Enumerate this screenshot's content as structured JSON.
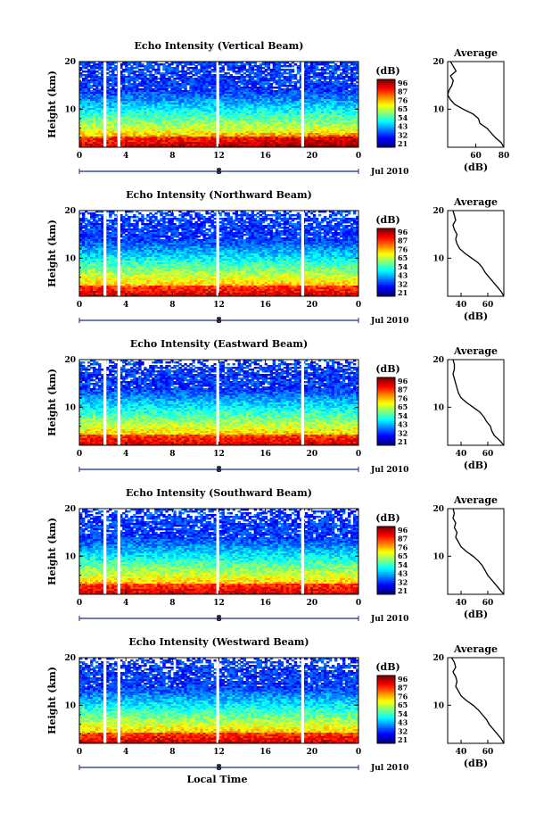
{
  "chart_data": [
    {
      "type": "heatmap",
      "title": "Echo Intensity (Vertical Beam)",
      "ylabel": "Height (km)",
      "ylim": [
        2,
        20
      ],
      "yticks": [
        "20",
        "10"
      ],
      "xlim": [
        0,
        24
      ],
      "xticks": [
        "0",
        "4",
        "8",
        "12",
        "16",
        "20",
        "0"
      ],
      "date_tick": "8",
      "date_label": "Jul 2010",
      "data_gaps_hours": [
        2.2,
        3.4,
        11.9,
        19.2
      ],
      "colorbar": {
        "label": "(dB)",
        "ticks": [
          "96",
          "87",
          "76",
          "65",
          "54",
          "43",
          "32",
          "21"
        ],
        "range": [
          21,
          96
        ]
      },
      "profile": {
        "title": "Average",
        "xlabel": "(dB)",
        "xticks": [
          "60",
          "80"
        ],
        "xlim": [
          40,
          80
        ],
        "yticks": [
          "20",
          "10"
        ],
        "ylim": [
          2,
          20
        ],
        "points": [
          [
            20,
            42
          ],
          [
            19,
            44
          ],
          [
            18,
            46
          ],
          [
            17,
            42
          ],
          [
            16,
            44
          ],
          [
            15,
            43
          ],
          [
            14,
            41
          ],
          [
            13,
            40
          ],
          [
            12,
            42
          ],
          [
            11,
            45
          ],
          [
            10,
            51
          ],
          [
            9,
            58
          ],
          [
            8,
            62
          ],
          [
            7,
            63
          ],
          [
            6,
            68
          ],
          [
            5,
            71
          ],
          [
            4,
            74
          ],
          [
            3,
            78
          ],
          [
            2,
            80
          ]
        ]
      }
    },
    {
      "type": "heatmap",
      "title": "Echo Intensity (Northward Beam)",
      "ylabel": "Height (km)",
      "ylim": [
        2,
        20
      ],
      "yticks": [
        "20",
        "10"
      ],
      "xlim": [
        0,
        24
      ],
      "xticks": [
        "0",
        "4",
        "8",
        "12",
        "16",
        "20",
        "0"
      ],
      "date_tick": "8",
      "date_label": "Jul 2010",
      "data_gaps_hours": [
        2.2,
        3.4,
        11.9,
        19.2
      ],
      "colorbar": {
        "label": "(dB)",
        "ticks": [
          "96",
          "87",
          "76",
          "65",
          "54",
          "43",
          "32",
          "21"
        ],
        "range": [
          21,
          96
        ]
      },
      "profile": {
        "title": "Average",
        "xlabel": "(dB)",
        "xticks": [
          "40",
          "60"
        ],
        "xlim": [
          30,
          72
        ],
        "yticks": [
          "20",
          "10"
        ],
        "ylim": [
          2,
          20
        ],
        "points": [
          [
            20,
            34
          ],
          [
            19,
            35
          ],
          [
            18,
            36
          ],
          [
            17,
            34
          ],
          [
            16,
            35
          ],
          [
            15,
            37
          ],
          [
            14,
            36
          ],
          [
            13,
            37
          ],
          [
            12,
            39
          ],
          [
            11,
            43
          ],
          [
            10,
            48
          ],
          [
            9,
            53
          ],
          [
            8,
            56
          ],
          [
            7,
            58
          ],
          [
            6,
            61
          ],
          [
            5,
            64
          ],
          [
            4,
            67
          ],
          [
            3,
            70
          ],
          [
            2,
            72
          ]
        ]
      }
    },
    {
      "type": "heatmap",
      "title": "Echo Intensity (Eastward Beam)",
      "ylabel": "Height (km)",
      "ylim": [
        2,
        20
      ],
      "yticks": [
        "20",
        "10"
      ],
      "xlim": [
        0,
        24
      ],
      "xticks": [
        "0",
        "4",
        "8",
        "12",
        "16",
        "20",
        "0"
      ],
      "date_tick": "8",
      "date_label": "Jul 2010",
      "data_gaps_hours": [
        2.2,
        3.4,
        11.9,
        19.2
      ],
      "colorbar": {
        "label": "(dB)",
        "ticks": [
          "96",
          "87",
          "76",
          "65",
          "54",
          "43",
          "32",
          "21"
        ],
        "range": [
          21,
          96
        ]
      },
      "profile": {
        "title": "Average",
        "xlabel": "(dB)",
        "xticks": [
          "40",
          "60"
        ],
        "xlim": [
          30,
          72
        ],
        "yticks": [
          "20",
          "10"
        ],
        "ylim": [
          2,
          20
        ],
        "points": [
          [
            20,
            34
          ],
          [
            19,
            35
          ],
          [
            18,
            35
          ],
          [
            17,
            34
          ],
          [
            16,
            35
          ],
          [
            15,
            36
          ],
          [
            14,
            37
          ],
          [
            13,
            38
          ],
          [
            12,
            40
          ],
          [
            11,
            44
          ],
          [
            10,
            49
          ],
          [
            9,
            54
          ],
          [
            8,
            57
          ],
          [
            7,
            59
          ],
          [
            6,
            62
          ],
          [
            5,
            63
          ],
          [
            4,
            65
          ],
          [
            3,
            69
          ],
          [
            2,
            72
          ]
        ]
      }
    },
    {
      "type": "heatmap",
      "title": "Echo Intensity (Southward Beam)",
      "ylabel": "Height (km)",
      "ylim": [
        2,
        20
      ],
      "yticks": [
        "20",
        "10"
      ],
      "xlim": [
        0,
        24
      ],
      "xticks": [
        "0",
        "4",
        "8",
        "12",
        "16",
        "20",
        "0"
      ],
      "date_tick": "8",
      "date_label": "Jul 2010",
      "data_gaps_hours": [
        2.2,
        3.4,
        11.9,
        19.2
      ],
      "colorbar": {
        "label": "(dB)",
        "ticks": [
          "96",
          "87",
          "76",
          "65",
          "54",
          "43",
          "32",
          "21"
        ],
        "range": [
          21,
          96
        ]
      },
      "profile": {
        "title": "Average",
        "xlabel": "(dB)",
        "xticks": [
          "40",
          "60"
        ],
        "xlim": [
          30,
          72
        ],
        "yticks": [
          "20",
          "10"
        ],
        "ylim": [
          2,
          20
        ],
        "points": [
          [
            20,
            34
          ],
          [
            19,
            35
          ],
          [
            18,
            34
          ],
          [
            17,
            36
          ],
          [
            16,
            35
          ],
          [
            15,
            37
          ],
          [
            14,
            36
          ],
          [
            13,
            38
          ],
          [
            12,
            40
          ],
          [
            11,
            44
          ],
          [
            10,
            49
          ],
          [
            9,
            53
          ],
          [
            8,
            56
          ],
          [
            7,
            58
          ],
          [
            6,
            60
          ],
          [
            5,
            63
          ],
          [
            4,
            66
          ],
          [
            3,
            69
          ],
          [
            2,
            72
          ]
        ]
      }
    },
    {
      "type": "heatmap",
      "title": "Echo Intensity (Westward Beam)",
      "ylabel": "Height (km)",
      "ylim": [
        2,
        20
      ],
      "yticks": [
        "20",
        "10"
      ],
      "xlim": [
        0,
        24
      ],
      "xticks": [
        "0",
        "4",
        "8",
        "12",
        "16",
        "20",
        "0"
      ],
      "date_tick": "8",
      "date_label": "Jul 2010",
      "xlabel": "Local Time",
      "data_gaps_hours": [
        2.2,
        3.4,
        11.9,
        19.2
      ],
      "colorbar": {
        "label": "(dB)",
        "ticks": [
          "96",
          "87",
          "76",
          "65",
          "54",
          "43",
          "32",
          "21"
        ],
        "range": [
          21,
          96
        ]
      },
      "profile": {
        "title": "Average",
        "xlabel": "(dB)",
        "xticks": [
          "40",
          "60"
        ],
        "xlim": [
          30,
          72
        ],
        "yticks": [
          "20",
          "10"
        ],
        "ylim": [
          2,
          20
        ],
        "points": [
          [
            20,
            33
          ],
          [
            19,
            35
          ],
          [
            18,
            36
          ],
          [
            17,
            34
          ],
          [
            16,
            36
          ],
          [
            15,
            37
          ],
          [
            14,
            36
          ],
          [
            13,
            38
          ],
          [
            12,
            40
          ],
          [
            11,
            44
          ],
          [
            10,
            49
          ],
          [
            9,
            53
          ],
          [
            8,
            56
          ],
          [
            7,
            59
          ],
          [
            6,
            61
          ],
          [
            5,
            64
          ],
          [
            4,
            67
          ],
          [
            3,
            70
          ],
          [
            2,
            72
          ]
        ]
      }
    }
  ]
}
